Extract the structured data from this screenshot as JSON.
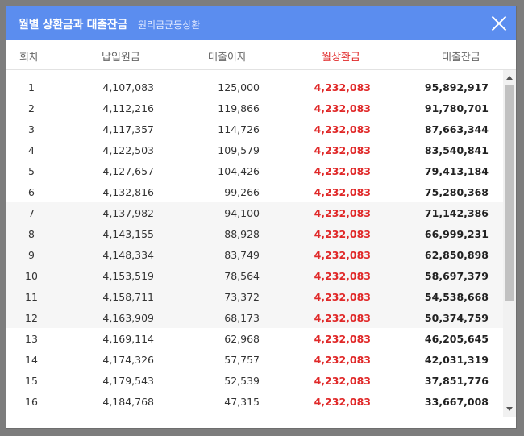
{
  "title": "월별 상환금과 대출잔금",
  "subtitle": "원리금균등상환",
  "headers": {
    "round": "회차",
    "principal": "납입원금",
    "interest": "대출이자",
    "payment": "월상환금",
    "balance": "대출잔금"
  },
  "colors": {
    "titlebar": "#5b8def",
    "payment": "#e02828"
  },
  "rows": [
    {
      "n": "1",
      "principal": "4,107,083",
      "interest": "125,000",
      "payment": "4,232,083",
      "balance": "95,892,917"
    },
    {
      "n": "2",
      "principal": "4,112,216",
      "interest": "119,866",
      "payment": "4,232,083",
      "balance": "91,780,701"
    },
    {
      "n": "3",
      "principal": "4,117,357",
      "interest": "114,726",
      "payment": "4,232,083",
      "balance": "87,663,344"
    },
    {
      "n": "4",
      "principal": "4,122,503",
      "interest": "109,579",
      "payment": "4,232,083",
      "balance": "83,540,841"
    },
    {
      "n": "5",
      "principal": "4,127,657",
      "interest": "104,426",
      "payment": "4,232,083",
      "balance": "79,413,184"
    },
    {
      "n": "6",
      "principal": "4,132,816",
      "interest": "99,266",
      "payment": "4,232,083",
      "balance": "75,280,368"
    },
    {
      "n": "7",
      "principal": "4,137,982",
      "interest": "94,100",
      "payment": "4,232,083",
      "balance": "71,142,386"
    },
    {
      "n": "8",
      "principal": "4,143,155",
      "interest": "88,928",
      "payment": "4,232,083",
      "balance": "66,999,231"
    },
    {
      "n": "9",
      "principal": "4,148,334",
      "interest": "83,749",
      "payment": "4,232,083",
      "balance": "62,850,898"
    },
    {
      "n": "10",
      "principal": "4,153,519",
      "interest": "78,564",
      "payment": "4,232,083",
      "balance": "58,697,379"
    },
    {
      "n": "11",
      "principal": "4,158,711",
      "interest": "73,372",
      "payment": "4,232,083",
      "balance": "54,538,668"
    },
    {
      "n": "12",
      "principal": "4,163,909",
      "interest": "68,173",
      "payment": "4,232,083",
      "balance": "50,374,759"
    },
    {
      "n": "13",
      "principal": "4,169,114",
      "interest": "62,968",
      "payment": "4,232,083",
      "balance": "46,205,645"
    },
    {
      "n": "14",
      "principal": "4,174,326",
      "interest": "57,757",
      "payment": "4,232,083",
      "balance": "42,031,319"
    },
    {
      "n": "15",
      "principal": "4,179,543",
      "interest": "52,539",
      "payment": "4,232,083",
      "balance": "37,851,776"
    },
    {
      "n": "16",
      "principal": "4,184,768",
      "interest": "47,315",
      "payment": "4,232,083",
      "balance": "33,667,008"
    }
  ]
}
